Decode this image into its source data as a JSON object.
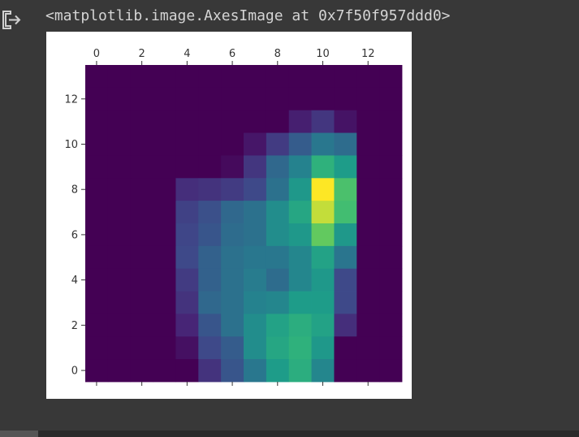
{
  "output": {
    "icon": "output-arrow-icon",
    "repr": "<matplotlib.image.AxesImage at 0x7f50f957ddd0>"
  },
  "chart_data": {
    "type": "heatmap",
    "colormap": "viridis",
    "xlim": [
      -0.5,
      13.5
    ],
    "ylim": [
      13.5,
      -0.5
    ],
    "xticks": [
      "0",
      "2",
      "4",
      "6",
      "8",
      "10",
      "12"
    ],
    "yticks": [
      "0",
      "2",
      "4",
      "6",
      "8",
      "10",
      "12"
    ],
    "x_axis_position": "top-and-bottom",
    "grid": false,
    "values": [
      [
        0,
        0,
        0,
        0,
        0,
        0,
        0,
        0,
        0,
        0,
        0,
        0,
        0,
        0
      ],
      [
        0,
        0,
        0,
        0,
        0,
        0,
        0,
        0,
        0,
        0,
        0,
        0,
        0,
        0
      ],
      [
        0,
        0,
        0,
        0,
        0,
        0,
        0,
        0,
        0,
        0.1,
        0.18,
        0.06,
        0,
        0
      ],
      [
        0,
        0,
        0,
        0,
        0,
        0,
        0,
        0.07,
        0.2,
        0.33,
        0.45,
        0.4,
        0,
        0
      ],
      [
        0,
        0,
        0,
        0,
        0,
        0,
        0.03,
        0.18,
        0.38,
        0.5,
        0.72,
        0.62,
        0,
        0
      ],
      [
        0,
        0,
        0,
        0,
        0.15,
        0.17,
        0.2,
        0.25,
        0.42,
        0.6,
        1.0,
        0.8,
        0,
        0
      ],
      [
        0,
        0,
        0,
        0,
        0.22,
        0.28,
        0.38,
        0.42,
        0.55,
        0.67,
        0.95,
        0.78,
        0,
        0
      ],
      [
        0,
        0,
        0,
        0,
        0.24,
        0.3,
        0.4,
        0.42,
        0.55,
        0.6,
        0.85,
        0.6,
        0,
        0
      ],
      [
        0,
        0,
        0,
        0,
        0.25,
        0.35,
        0.42,
        0.45,
        0.45,
        0.52,
        0.65,
        0.44,
        0,
        0
      ],
      [
        0,
        0,
        0,
        0,
        0.2,
        0.35,
        0.42,
        0.47,
        0.4,
        0.52,
        0.6,
        0.25,
        0,
        0
      ],
      [
        0,
        0,
        0,
        0,
        0.17,
        0.38,
        0.42,
        0.5,
        0.52,
        0.62,
        0.62,
        0.25,
        0,
        0
      ],
      [
        0,
        0,
        0,
        0,
        0.12,
        0.3,
        0.42,
        0.55,
        0.65,
        0.7,
        0.65,
        0.15,
        0,
        0
      ],
      [
        0,
        0,
        0,
        0,
        0.05,
        0.25,
        0.33,
        0.55,
        0.67,
        0.72,
        0.6,
        0,
        0,
        0
      ],
      [
        0,
        0,
        0,
        0,
        0,
        0.17,
        0.3,
        0.45,
        0.62,
        0.7,
        0.52,
        0,
        0,
        0
      ]
    ]
  }
}
